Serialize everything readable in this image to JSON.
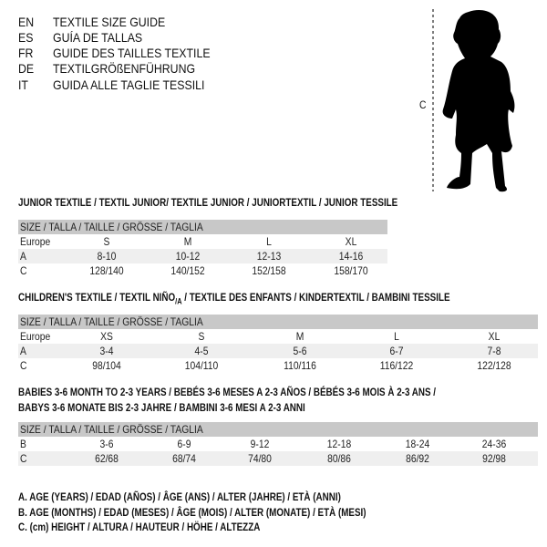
{
  "titles": [
    {
      "code": "EN",
      "text": "TEXTILE SIZE GUIDE"
    },
    {
      "code": "ES",
      "text": "GUÍA DE TALLAS"
    },
    {
      "code": "FR",
      "text": "GUIDE DES TAILLES TEXTILE"
    },
    {
      "code": "DE",
      "text": "TEXTILGRÖßENFÜHRUNG"
    },
    {
      "code": "IT",
      "text": "GUIDA ALLE TAGLIE TESSILI"
    }
  ],
  "figure": {
    "measure_label": "C",
    "icon": "child-silhouette"
  },
  "junior": {
    "heading": "JUNIOR TEXTILE / TEXTIL JUNIOR/ TEXTILE JUNIOR / JUNIORTEXTIL / JUNIOR TESSILE",
    "header": "SIZE / TALLA / TAILLE / GRÖSSE / TAGLIA",
    "rows": [
      {
        "label": "Europe",
        "values": [
          "S",
          "M",
          "L",
          "XL"
        ]
      },
      {
        "label": "A",
        "values": [
          "8-10",
          "10-12",
          "12-13",
          "14-16"
        ]
      },
      {
        "label": "C",
        "values": [
          "128/140",
          "140/152",
          "152/158",
          "158/170"
        ]
      }
    ]
  },
  "children": {
    "heading_pre": "CHILDREN'S TEXTILE / TEXTIL NIÑO",
    "heading_sub": "/A",
    "heading_post": " / TEXTILE DES ENFANTS / KINDERTEXTIL / BAMBINI TESSILE",
    "header": "SIZE / TALLA / TAILLE / GRÖSSE / TAGLIA",
    "rows": [
      {
        "label": "Europe",
        "values": [
          "XS",
          "S",
          "M",
          "L",
          "XL"
        ]
      },
      {
        "label": "A",
        "values": [
          "3-4",
          "4-5",
          "5-6",
          "6-7",
          "7-8"
        ]
      },
      {
        "label": "C",
        "values": [
          "98/104",
          "104/110",
          "110/116",
          "116/122",
          "122/128"
        ]
      }
    ]
  },
  "babies": {
    "heading_line1": "BABIES 3-6 MONTH TO 2-3 YEARS / BEBÉS 3-6 MESES A 2-3 AÑOS / BÉBÉS 3-6 MOIS À 2-3 ANS /",
    "heading_line2": "BABYS 3-6 MONATE BIS 2-3 JAHRE / BAMBINI 3-6 MESI A 2-3 ANNI",
    "header": "SIZE / TALLA / TAILLE / GRÖSSE / TAGLIA",
    "rows": [
      {
        "label": "B",
        "values": [
          "3-6",
          "6-9",
          "9-12",
          "12-18",
          "18-24",
          "24-36"
        ]
      },
      {
        "label": "C",
        "values": [
          "62/68",
          "68/74",
          "74/80",
          "80/86",
          "86/92",
          "92/98"
        ]
      }
    ]
  },
  "legend": [
    "A. AGE (YEARS) / EDAD (AÑOS) / ÂGE (ANS) / ALTER (JAHRE) / ETÀ (ANNI)",
    "B. AGE (MONTHS) / EDAD (MESES) / ÂGE (MOIS) / ALTER (MONATE) / ETÀ (MESI)",
    "C. (cm) HEIGHT / ALTURA / HAUTEUR / HÖHE / ALTEZZA"
  ],
  "colors": {
    "header_bg": "#c8c8c8",
    "alt_row_bg": "#efefef"
  }
}
